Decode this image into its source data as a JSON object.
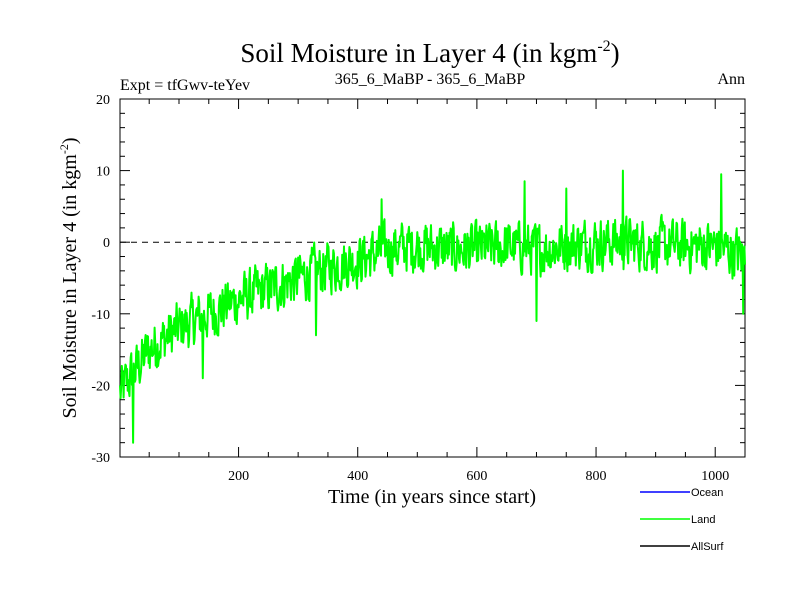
{
  "chart_data": {
    "type": "line",
    "title": "Soil Moisture in Layer 4 (in kgm",
    "title_sup": "-2",
    "title_close": ")",
    "subtitle_left": "Expt = tfGwv-teYev",
    "subtitle_center": "365_6_MaBP - 365_6_MaBP",
    "subtitle_right": "Ann",
    "xlabel": "Time (in years since start)",
    "ylabel": "Soil Moisture in Layer 4 (in kgm",
    "ylabel_sup": "-2",
    "ylabel_close": ")",
    "xlim": [
      1,
      1050
    ],
    "ylim": [
      -30,
      20
    ],
    "xticks": [
      200,
      400,
      600,
      800,
      1000
    ],
    "xtick_labels": [
      "200",
      "400",
      "600",
      "800",
      "1000"
    ],
    "yticks": [
      -30,
      -20,
      -10,
      0,
      10,
      20
    ],
    "ytick_labels": [
      "-30",
      "-20",
      "-10",
      "0",
      "10",
      "20"
    ],
    "zero_line": 0,
    "n_years": 1050,
    "trend_knots": [
      [
        1,
        -21
      ],
      [
        50,
        -15
      ],
      [
        100,
        -12
      ],
      [
        150,
        -10
      ],
      [
        200,
        -8
      ],
      [
        250,
        -6.5
      ],
      [
        300,
        -5
      ],
      [
        350,
        -3.5
      ],
      [
        400,
        -2.5
      ],
      [
        450,
        -1
      ],
      [
        500,
        -0.5
      ],
      [
        550,
        -1
      ],
      [
        600,
        -1
      ],
      [
        650,
        -0.5
      ],
      [
        700,
        -1
      ],
      [
        750,
        -0.5
      ],
      [
        800,
        0
      ],
      [
        850,
        0
      ],
      [
        900,
        -0.5
      ],
      [
        950,
        -0.5
      ],
      [
        1000,
        -0.5
      ],
      [
        1050,
        -2
      ]
    ],
    "anomalies": [
      [
        23,
        -28
      ],
      [
        680,
        8.5
      ],
      [
        845,
        10
      ],
      [
        1010,
        9.5
      ],
      [
        440,
        6
      ],
      [
        750,
        7.5
      ],
      [
        700,
        -11
      ],
      [
        1047,
        -10
      ],
      [
        140,
        -19
      ],
      [
        330,
        -13
      ]
    ],
    "noise_amplitude": 3.2,
    "series": [
      {
        "name": "Ocean",
        "color": "#0000ff",
        "plotted": false
      },
      {
        "name": "Land",
        "color": "#00ff00",
        "plotted": true
      },
      {
        "name": "AllSurf",
        "color": "#000000",
        "plotted": false
      }
    ],
    "legend_position": "bottom-right"
  }
}
